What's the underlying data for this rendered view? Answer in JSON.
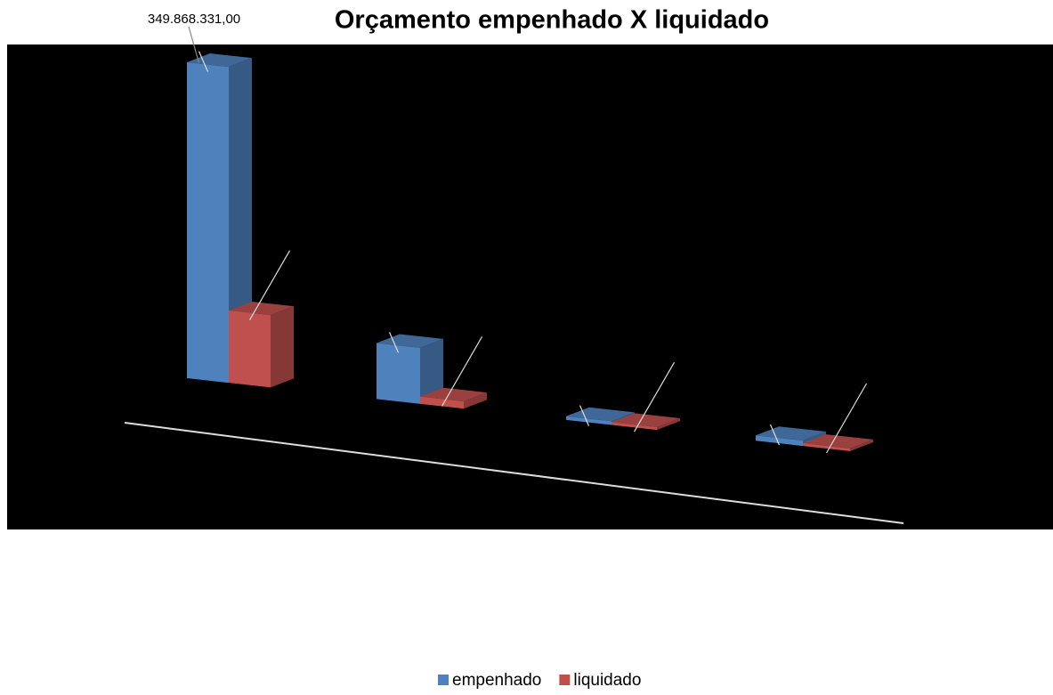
{
  "chart_data": {
    "type": "bar",
    "title": "Orçamento empenhado X liquidado",
    "categories": [
      null,
      null,
      null,
      null
    ],
    "series": [
      {
        "name": "empenhado",
        "color": "#4f81bd",
        "values": [
          349868331,
          62000000,
          4000000,
          6000000
        ],
        "value_labels": [
          "349.868.331,00",
          null,
          null,
          null
        ]
      },
      {
        "name": "liquidado",
        "color": "#c0504d",
        "values": [
          80000000,
          8000000,
          3000000,
          3000000
        ]
      }
    ]
  }
}
